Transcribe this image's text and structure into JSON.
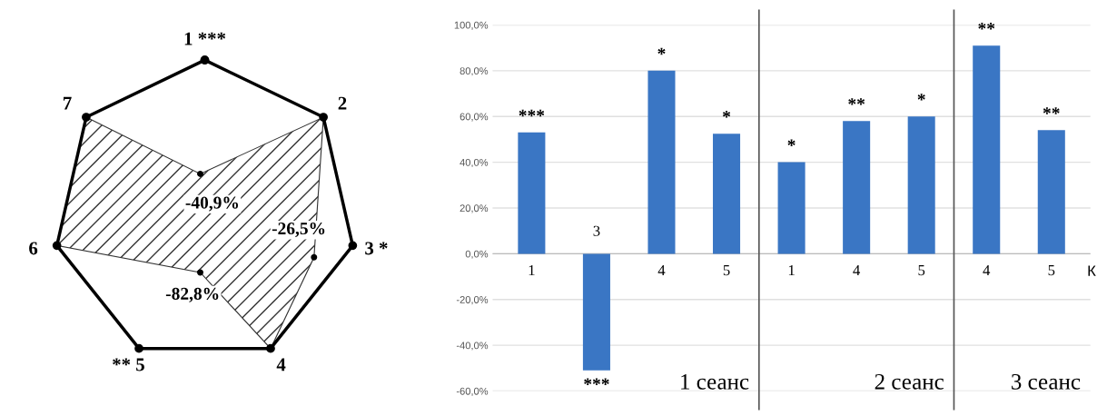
{
  "chart_data": [
    {
      "type": "other",
      "categories": [
        "1 ***",
        "2",
        "3 *",
        "4",
        "** 5",
        "6",
        "7"
      ],
      "annotations": [
        "-40,9%",
        "-26,5%",
        "-82,8%"
      ]
    },
    {
      "type": "bar",
      "categories": [
        "1",
        "3",
        "4",
        "5",
        "1",
        "4",
        "5",
        "4",
        "5"
      ],
      "values": [
        53,
        -51,
        80,
        52.5,
        40,
        58,
        60,
        91,
        54
      ],
      "color": "#3a76c4",
      "value_labels": [
        "***",
        "***",
        "*",
        "*",
        "*",
        "**",
        "*",
        "**",
        "**"
      ],
      "xlabel": "К",
      "annotations": [
        "1 сеанс",
        "2 сеанс",
        "3 сеанс"
      ],
      "ylim": [
        -60,
        100
      ],
      "yticks": [
        {
          "value": -60,
          "label": "-60,0%"
        },
        {
          "value": -40,
          "label": "-40,0%"
        },
        {
          "value": -20,
          "label": "-20,0%"
        },
        {
          "value": 0,
          "label": "0,0%"
        },
        {
          "value": 20,
          "label": "20,0%"
        },
        {
          "value": 40,
          "label": "40,0%"
        },
        {
          "value": 60,
          "label": "60,0%"
        },
        {
          "value": 80,
          "label": "80,0%"
        },
        {
          "value": 100,
          "label": "100,0%"
        }
      ],
      "grid": "y"
    }
  ]
}
